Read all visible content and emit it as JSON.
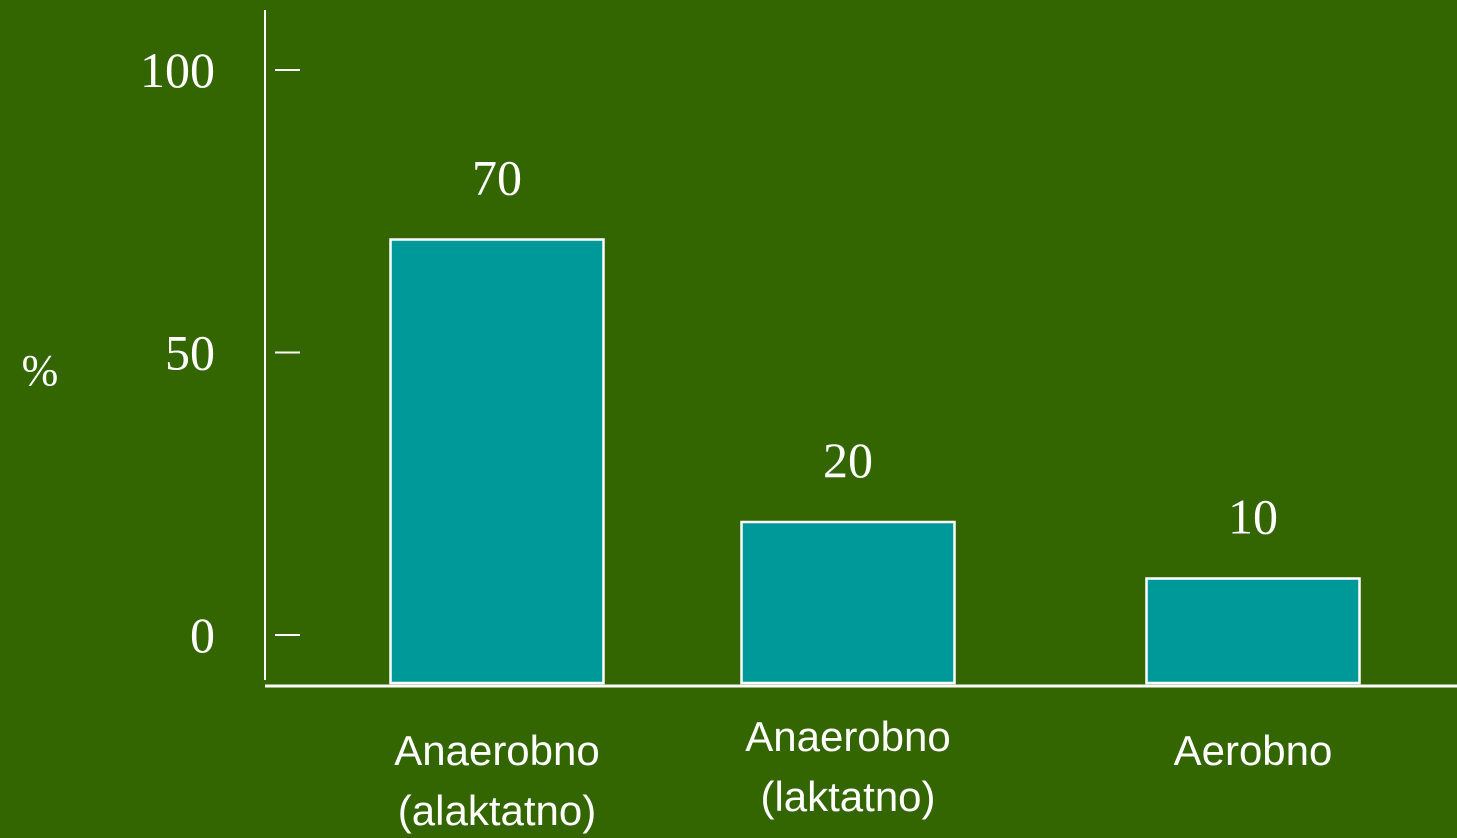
{
  "colors": {
    "background": "#336600",
    "bar_fill": "#009999",
    "bar_stroke": "#ffffff",
    "axis": "#ffffff",
    "text": "#ffffff"
  },
  "chart_data": {
    "type": "bar",
    "title": "",
    "xlabel": "",
    "ylabel": "%",
    "ylim": [
      0,
      100
    ],
    "y_ticks": [
      {
        "value": 0,
        "label": "0"
      },
      {
        "value": 50,
        "label": "50"
      },
      {
        "value": 100,
        "label": "100"
      }
    ],
    "categories": [
      {
        "lines": [
          "Anaerobno",
          "(alaktatno)"
        ]
      },
      {
        "lines": [
          "Anaerobno",
          "(laktatno)"
        ]
      },
      {
        "lines": [
          "Aerobno"
        ]
      }
    ],
    "values": [
      70,
      20,
      10
    ],
    "value_labels": [
      "70",
      "20",
      "10"
    ],
    "grid": false,
    "legend": "none"
  }
}
